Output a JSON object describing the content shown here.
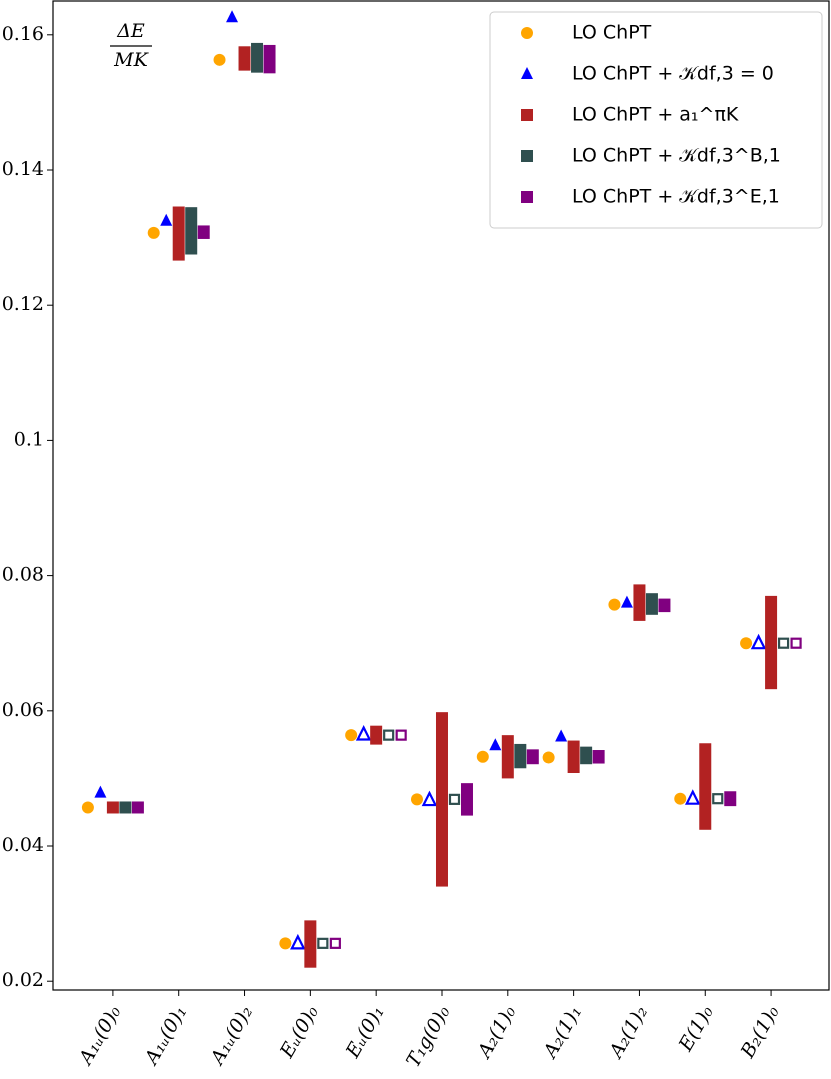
{
  "chart_data": {
    "type": "scatter",
    "annotation": [
      "ΔE",
      "MK"
    ],
    "categories": [
      "A₁ᵤ(0)₀",
      "A₁ᵤ(0)₁",
      "A₁ᵤ(0)₂",
      "Eᵤ(0)₀",
      "Eᵤ(0)₁",
      "T₁g(0)₀",
      "A₂(1)₀",
      "A₂(1)₁",
      "A₂(1)₂",
      "E(1)₀",
      "B₂(1)₀"
    ],
    "series": [
      {
        "name": "LO ChPT",
        "color": "#ffa500",
        "marker": "circle",
        "values": [
          0.0457,
          0.1307,
          0.1563,
          0.0256,
          0.0564,
          0.0469,
          0.0532,
          0.0531,
          0.0757,
          0.047,
          0.07
        ],
        "open": [
          false,
          false,
          false,
          false,
          false,
          false,
          false,
          false,
          false,
          false,
          false
        ]
      },
      {
        "name": "LO ChPT + 𝒦df,3 = 0",
        "color": "#0000ff",
        "marker": "triangle",
        "values": [
          0.0479,
          0.1325,
          0.1626,
          0.0256,
          0.0565,
          0.0468,
          0.0549,
          0.0562,
          0.076,
          0.047,
          0.07
        ],
        "open": [
          false,
          false,
          false,
          true,
          true,
          true,
          false,
          false,
          false,
          true,
          true
        ]
      },
      {
        "name": "LO ChPT + a₁^πK",
        "color": "#b22222",
        "marker": "square",
        "values": [
          0.0457,
          0.1306,
          0.1565,
          0.0255,
          0.0564,
          0.0469,
          0.0532,
          0.0532,
          0.076,
          0.0488,
          0.0701
        ],
        "errors": [
          0.0001,
          0.004,
          0.0018,
          0.0035,
          0.0014,
          0.0129,
          0.0032,
          0.0024,
          0.0027,
          0.0064,
          0.0069
        ],
        "open": [
          false,
          false,
          false,
          false,
          false,
          false,
          false,
          false,
          false,
          false,
          false
        ]
      },
      {
        "name": "LO ChPT + 𝒦df,3^B,1",
        "color": "#2f4f4f",
        "marker": "square",
        "values": [
          0.0457,
          0.131,
          0.1566,
          0.0256,
          0.0564,
          0.0469,
          0.0533,
          0.0534,
          0.0758,
          0.047,
          0.07
        ],
        "errors": [
          0.0001,
          0.0035,
          0.0022,
          0,
          0,
          0,
          0.0018,
          0.0013,
          0.0016,
          0,
          0
        ],
        "open": [
          false,
          false,
          false,
          true,
          true,
          true,
          false,
          false,
          false,
          true,
          true
        ]
      },
      {
        "name": "LO ChPT + 𝒦df,3^E,1",
        "color": "#800080",
        "marker": "square",
        "values": [
          0.0457,
          0.1308,
          0.1564,
          0.0256,
          0.0564,
          0.0469,
          0.0532,
          0.0532,
          0.0756,
          0.047,
          0.07
        ],
        "errors": [
          0.0001,
          0.001,
          0.0021,
          0,
          0,
          0.0024,
          0.0011,
          0.001,
          0.001,
          0.0011,
          0
        ],
        "open": [
          false,
          false,
          false,
          true,
          true,
          false,
          false,
          false,
          false,
          false,
          true
        ]
      }
    ],
    "ylim": [
      0.0187,
      0.165
    ],
    "yticks": [
      0.02,
      0.04,
      0.06,
      0.08,
      0.1,
      0.12,
      0.14,
      0.16
    ],
    "legend": "upper right"
  }
}
